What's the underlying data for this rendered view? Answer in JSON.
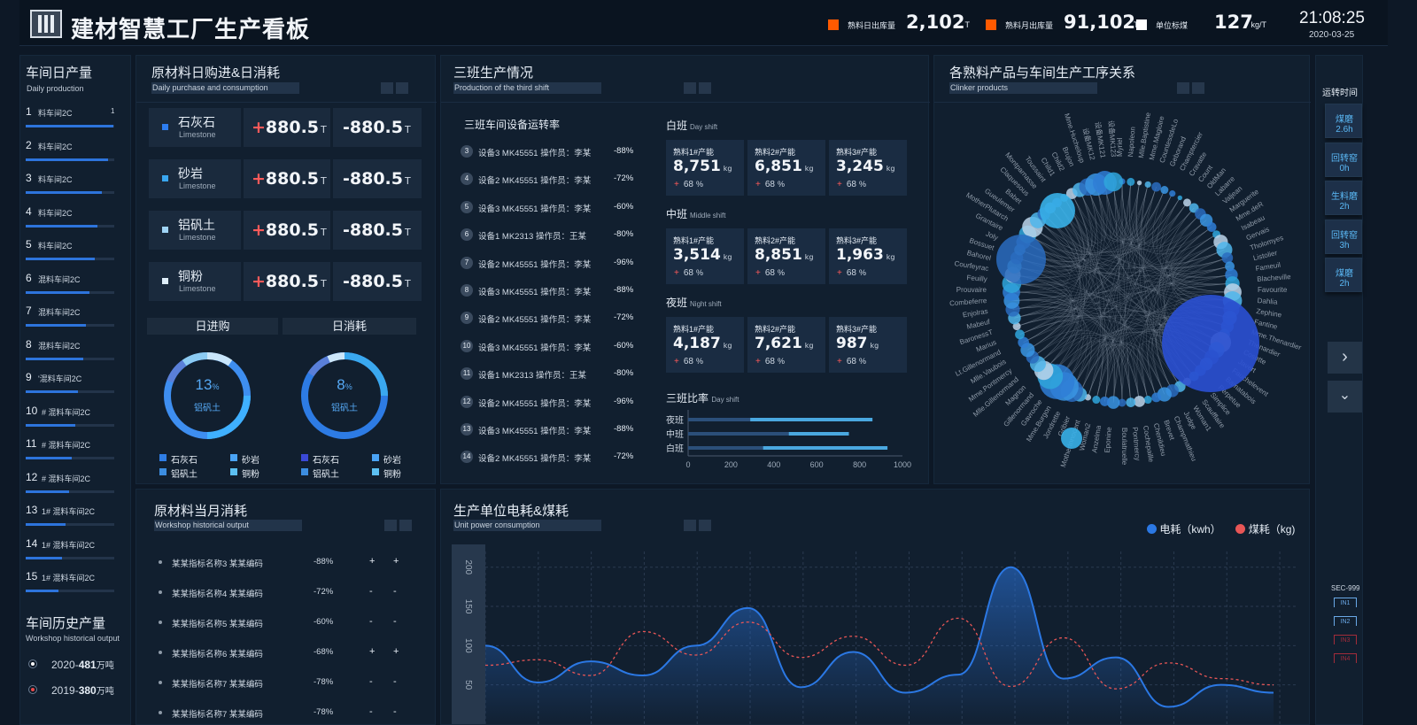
{
  "header": {
    "title": "建材智慧工厂生产看板",
    "stats": [
      {
        "label": "熟料日出库量",
        "value": "2,102",
        "unit": "T",
        "color": "#ff5a00"
      },
      {
        "label": "熟料月出库量",
        "value": "91,102",
        "unit": "T",
        "color": "#ff5a00"
      },
      {
        "label": "单位标煤",
        "value": "127",
        "unit": "kg/T",
        "color": "#ffffff"
      }
    ],
    "time": "21:08:25",
    "date": "2020-03-25"
  },
  "workshop": {
    "title": "车间日产量",
    "subtitle": "Daily production",
    "items": [
      {
        "rank": "1",
        "name": "料车间2C",
        "value": 0.92,
        "extra": "1"
      },
      {
        "rank": "2",
        "name": "料车间2C",
        "value": 0.86
      },
      {
        "rank": "3",
        "name": "料车间2C",
        "value": 0.8
      },
      {
        "rank": "4",
        "name": "料车间2C",
        "value": 0.75
      },
      {
        "rank": "5",
        "name": "料车间2C",
        "value": 0.72
      },
      {
        "rank": "6",
        "name": "混料车间2C",
        "value": 0.67
      },
      {
        "rank": "7",
        "name": "混料车间2C",
        "value": 0.63
      },
      {
        "rank": "8",
        "name": "混料车间2C",
        "value": 0.6
      },
      {
        "rank": "9",
        "name": "'混料车间2C",
        "value": 0.55
      },
      {
        "rank": "10",
        "name": "# 混料车间2C",
        "value": 0.52
      },
      {
        "rank": "11",
        "name": "# 混料车间2C",
        "value": 0.48
      },
      {
        "rank": "12",
        "name": "# 混料车间2C",
        "value": 0.45
      },
      {
        "rank": "13",
        "name": "1# 混料车间2C",
        "value": 0.42
      },
      {
        "rank": "14",
        "name": "1# 混料车间2C",
        "value": 0.38
      },
      {
        "rank": "15",
        "name": "1# 混料车间2C",
        "value": 0.34
      }
    ],
    "history_title": "车间历史产量",
    "history_sub": "Workshop historical output",
    "history": [
      {
        "year": "2020-",
        "value": "481",
        "unit": "万吨"
      },
      {
        "year": "2019-",
        "value": "380",
        "unit": "万吨"
      }
    ]
  },
  "raw": {
    "title": "原材料日购进&日消耗",
    "subtitle": "Daily purchase and consumption",
    "rows": [
      {
        "name": "石灰石",
        "en": "Limestone",
        "in": "+880.5",
        "out": "-880.5",
        "unit": "T",
        "color": "#2d7df0"
      },
      {
        "name": "砂岩",
        "en": "Limestone",
        "in": "+880.5",
        "out": "-880.5",
        "unit": "T",
        "color": "#39a6f0"
      },
      {
        "name": "铝矾土",
        "en": "Limestone",
        "in": "+880.5",
        "out": "-880.5",
        "unit": "T",
        "color": "#9fd4f5"
      },
      {
        "name": "铜粉",
        "en": "Limestone",
        "in": "+880.5",
        "out": "-880.5",
        "unit": "T",
        "color": "#dfeefa"
      }
    ],
    "tab_in": "日进购",
    "tab_out": "日消耗",
    "donuts": [
      {
        "pct": "13",
        "unit": "%",
        "label": "铝矾土"
      },
      {
        "pct": "8",
        "unit": "%",
        "label": "铝矾土"
      }
    ],
    "legend": [
      {
        "name": "石灰石",
        "color": "#2f7de5"
      },
      {
        "name": "砂岩",
        "color": "#4aa3f5"
      },
      {
        "name": "铝矾土",
        "color": "#3c8de0"
      },
      {
        "name": "铜粉",
        "color": "#5cc0f2"
      }
    ],
    "legend2": [
      {
        "name": "石灰石",
        "color": "#3b49d6"
      },
      {
        "name": "砂岩",
        "color": "#4aa3f5"
      },
      {
        "name": "铝矾土",
        "color": "#3c8de0"
      },
      {
        "name": "铜粉",
        "color": "#5cc0f2"
      }
    ]
  },
  "shift": {
    "title": "三班生产情况",
    "subtitle": "Production of the third shift",
    "equip_title": "三班车间设备运转率",
    "equip": [
      {
        "n": "3",
        "text": "设备3 MK45551 操作员：李某",
        "pct": "-88%"
      },
      {
        "n": "4",
        "text": "设备2 MK45551 操作员：李某",
        "pct": "-72%"
      },
      {
        "n": "5",
        "text": "设备3 MK45551 操作员：李某",
        "pct": "-60%"
      },
      {
        "n": "6",
        "text": "设备1 MK2313 操作员：王某",
        "pct": "-80%"
      },
      {
        "n": "7",
        "text": "设备2 MK45551 操作员：李某",
        "pct": "-96%"
      },
      {
        "n": "8",
        "text": "设备3 MK45551 操作员：李某",
        "pct": "-88%"
      },
      {
        "n": "9",
        "text": "设备2 MK45551 操作员：李某",
        "pct": "-72%"
      },
      {
        "n": "10",
        "text": "设备3 MK45551 操作员：李某",
        "pct": "-60%"
      },
      {
        "n": "11",
        "text": "设备1 MK2313 操作员：王某",
        "pct": "-80%"
      },
      {
        "n": "12",
        "text": "设备2 MK45551 操作员：李某",
        "pct": "-96%"
      },
      {
        "n": "13",
        "text": "设备3 MK45551 操作员：李某",
        "pct": "-88%"
      },
      {
        "n": "14",
        "text": "设备2 MK45551 操作员：李某",
        "pct": "-72%"
      }
    ],
    "shifts": [
      {
        "name": "白班",
        "en": "Day shift",
        "cards": [
          {
            "label": "熟料1#产能",
            "value": "8,751",
            "unit": "kg",
            "pct": "68",
            "pu": "%"
          },
          {
            "label": "熟料2#产能",
            "value": "6,851",
            "unit": "kg",
            "pct": "68",
            "pu": "%"
          },
          {
            "label": "熟料3#产能",
            "value": "3,245",
            "unit": "kg",
            "pct": "68",
            "pu": "%"
          }
        ]
      },
      {
        "name": "中班",
        "en": "Middle shift",
        "cards": [
          {
            "label": "熟料1#产能",
            "value": "3,514",
            "unit": "kg",
            "pct": "68",
            "pu": "%"
          },
          {
            "label": "熟料2#产能",
            "value": "8,851",
            "unit": "kg",
            "pct": "68",
            "pu": "%"
          },
          {
            "label": "熟料3#产能",
            "value": "1,963",
            "unit": "kg",
            "pct": "68",
            "pu": "%"
          }
        ]
      },
      {
        "name": "夜班",
        "en": "Night shift",
        "cards": [
          {
            "label": "熟料1#产能",
            "value": "4,187",
            "unit": "kg",
            "pct": "68",
            "pu": "%"
          },
          {
            "label": "熟料2#产能",
            "value": "7,621",
            "unit": "kg",
            "pct": "68",
            "pu": "%"
          },
          {
            "label": "熟料3#产能",
            "value": "987",
            "unit": "kg",
            "pct": "68",
            "pu": "%"
          }
        ]
      }
    ],
    "ratio_title": "三班比率",
    "ratio_en": "Day shift",
    "ratio": {
      "categories": [
        "夜班",
        "中班",
        "白班"
      ],
      "ticks": [
        "0",
        "200",
        "400",
        "600",
        "800",
        "1000"
      ],
      "bars": [
        [
          0,
          860,
          290
        ],
        [
          0,
          750,
          470
        ],
        [
          0,
          930,
          350
        ]
      ]
    }
  },
  "clinker": {
    "title": "各熟料产品与车间生产工序关系",
    "subtitle": "Clinker products",
    "labels": [
      "Myriel",
      "Napoleon",
      "Mlle.Baptistine",
      "Mme.Magloire",
      "CountessdeLo",
      "Geborand",
      "Champtercier",
      "Cravatte",
      "Count",
      "OldMan",
      "Labarre",
      "Valjean",
      "Marguerite",
      "Mme.deR",
      "Isabeau",
      "Gervais",
      "Tholomyes",
      "Listolier",
      "Fameuil",
      "Blacheville",
      "Favourite",
      "Dahlia",
      "Zephine",
      "Fantine",
      "Mme.Thenardier",
      "Thenardier",
      "Cosette",
      "Javert",
      "Fauchelevent",
      "Bamatabois",
      "Perpetue",
      "Simplice",
      "Scaufflaire",
      "Woman1",
      "Judge",
      "Champmathieu",
      "Brevet",
      "Chenildieu",
      "Cochepaille",
      "Pontmercy",
      "Boulatruelle",
      "Eponine",
      "Anzelma",
      "Woman2",
      "MotherInnocent",
      "Gribier",
      "Jondrette",
      "Mme.Burgon",
      "Gavroche",
      "Gillenormand",
      "Magnon",
      "Mlle.Gillenormand",
      "Mme.Pontmercy",
      "Mlle.Vaubois",
      "Lt.Gillenormand",
      "Marius",
      "BaronessT",
      "Mabeuf",
      "Enjolras",
      "Combeferre",
      "Prouvaire",
      "Feuilly",
      "Courfeyrac",
      "Bahorel",
      "Bossuet",
      "Joly",
      "Grantaire",
      "MotherPlutarch",
      "Gueulemer",
      "Babet",
      "Claquesous",
      "Montparnasse",
      "Toussaint",
      "Child1",
      "Child2",
      "Brujon",
      "Mme.Hucheloup",
      "设备MK12",
      "设备MK121",
      "设备MK123"
    ]
  },
  "right": {
    "title": "运转时间",
    "items": [
      {
        "name": "煤磨",
        "val": "2.6h"
      },
      {
        "name": "回转窑",
        "val": "0h"
      },
      {
        "name": "生料磨",
        "val": "2h"
      },
      {
        "name": "回转窑",
        "val": "3h"
      },
      {
        "name": "煤磨",
        "val": "2h"
      }
    ],
    "sec": "SEC-999",
    "in_labels": [
      "IN1",
      "IN2",
      "IN3",
      "IN4"
    ]
  },
  "monthly": {
    "title": "原材料当月消耗",
    "subtitle": "Workshop historical output",
    "rows": [
      {
        "name": "某某指标名称3 某某编码",
        "pct": "-88%",
        "a": "+",
        "b": "+"
      },
      {
        "name": "某某指标名称4 某某编码",
        "pct": "-72%",
        "a": "-",
        "b": "-"
      },
      {
        "name": "某某指标名称5 某某编码",
        "pct": "-60%",
        "a": "-",
        "b": "-"
      },
      {
        "name": "某某指标名称6 某某编码",
        "pct": "-68%",
        "a": "+",
        "b": "+"
      },
      {
        "name": "某某指标名称7 某某编码",
        "pct": "-78%",
        "a": "-",
        "b": "-"
      },
      {
        "name": "某某指标名称7 某某编码",
        "pct": "-78%",
        "a": "-",
        "b": "-"
      }
    ]
  },
  "energy": {
    "title": "生产单位电耗&煤耗",
    "subtitle": "Unit power consumption",
    "legend": [
      {
        "name": "电耗（kwh）",
        "color": "#2b78e4"
      },
      {
        "name": "煤耗（kg)",
        "color": "#e85656"
      }
    ]
  },
  "chart_data": {
    "type": "line",
    "ylim": [
      0,
      220
    ],
    "yticks": [
      "50",
      "100",
      "150",
      "200"
    ],
    "x": [
      0,
      1,
      2,
      3,
      4,
      5,
      6,
      7,
      8,
      9,
      10,
      11,
      12,
      13,
      14,
      15
    ],
    "series": [
      {
        "name": "电耗（kwh）",
        "values": [
          100,
          53,
          80,
          62,
          100,
          148,
          47,
          92,
          40,
          63,
          200,
          58,
          85,
          22,
          50,
          40
        ]
      },
      {
        "name": "煤耗（kg)",
        "values": [
          75,
          82,
          62,
          118,
          88,
          130,
          85,
          112,
          75,
          135,
          48,
          110,
          45,
          78,
          58,
          50
        ]
      }
    ]
  }
}
